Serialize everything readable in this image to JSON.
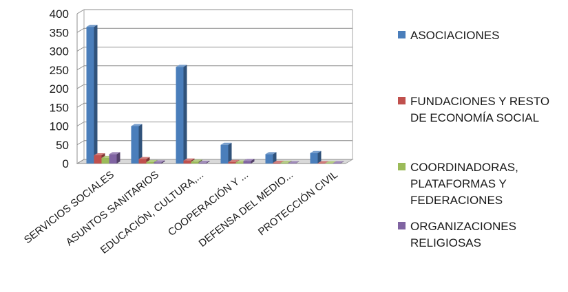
{
  "chart_data": {
    "type": "bar",
    "categories": [
      "SERVICIOS SOCIALES",
      "ASUNTOS SANITARIOS",
      "EDUCACIÓN, CULTURA,...",
      "COOPERACIÓN Y ...",
      "DEFENSA DEL MEDIO...",
      "PROTECCIÓN CIVIL"
    ],
    "series": [
      {
        "name": "ASOCIACIONES",
        "color": "#4a7ebb",
        "values": [
          365,
          100,
          258,
          50,
          25,
          28
        ]
      },
      {
        "name": "FUNDACIONES Y RESTO DE ECONOMÍA SOCIAL",
        "color": "#c0504d",
        "values": [
          22,
          12,
          8,
          4,
          2,
          1
        ]
      },
      {
        "name": "COORDINADORAS, PLATAFORMAS Y FEDERACIONES",
        "color": "#9bbb59",
        "values": [
          15,
          4,
          5,
          3,
          2,
          1
        ]
      },
      {
        "name": "ORGANIZACIONES RELIGIOSAS",
        "color": "#8064a2",
        "values": [
          25,
          3,
          2,
          7,
          1,
          1
        ]
      }
    ],
    "ylim": [
      0,
      400
    ],
    "yticks": [
      0,
      50,
      100,
      150,
      200,
      250,
      300,
      350,
      400
    ],
    "grid": true,
    "legend_position": "right"
  }
}
